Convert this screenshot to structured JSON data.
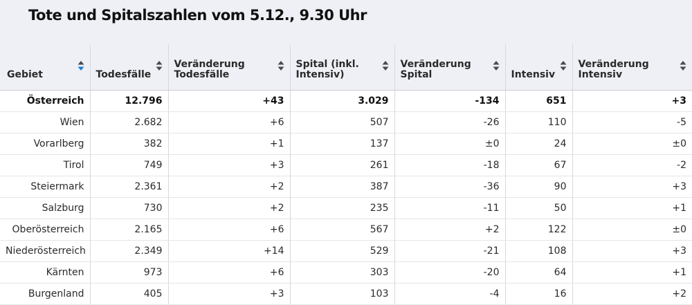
{
  "title": "Tote und Spitalszahlen vom 5.12., 9.30 Uhr",
  "colors": {
    "sort_active": "#1a7fd6",
    "sort_inactive": "#4a4a4a",
    "header_bg": "#eef0f5"
  },
  "columns": [
    {
      "label": "Gebiet",
      "sort_state": "active"
    },
    {
      "label": "Todesfälle",
      "sort_state": "inactive"
    },
    {
      "label": "Veränderung Todesfälle",
      "sort_state": "inactive"
    },
    {
      "label": "Spital (inkl. Intensiv)",
      "sort_state": "inactive"
    },
    {
      "label": "Veränderung Spital",
      "sort_state": "inactive"
    },
    {
      "label": "Intensiv",
      "sort_state": "inactive"
    },
    {
      "label": "Veränderung Intensiv",
      "sort_state": "inactive"
    }
  ],
  "rows": [
    [
      "Österreich",
      "12.796",
      "+43",
      "3.029",
      "-134",
      "651",
      "+3"
    ],
    [
      "Wien",
      "2.682",
      "+6",
      "507",
      "-26",
      "110",
      "-5"
    ],
    [
      "Vorarlberg",
      "382",
      "+1",
      "137",
      "±0",
      "24",
      "±0"
    ],
    [
      "Tirol",
      "749",
      "+3",
      "261",
      "-18",
      "67",
      "-2"
    ],
    [
      "Steiermark",
      "2.361",
      "+2",
      "387",
      "-36",
      "90",
      "+3"
    ],
    [
      "Salzburg",
      "730",
      "+2",
      "235",
      "-11",
      "50",
      "+1"
    ],
    [
      "Oberösterreich",
      "2.165",
      "+6",
      "567",
      "+2",
      "122",
      "±0"
    ],
    [
      "Niederösterreich",
      "2.349",
      "+14",
      "529",
      "-21",
      "108",
      "+3"
    ],
    [
      "Kärnten",
      "973",
      "+6",
      "303",
      "-20",
      "64",
      "+1"
    ],
    [
      "Burgenland",
      "405",
      "+3",
      "103",
      "-4",
      "16",
      "+2"
    ]
  ]
}
